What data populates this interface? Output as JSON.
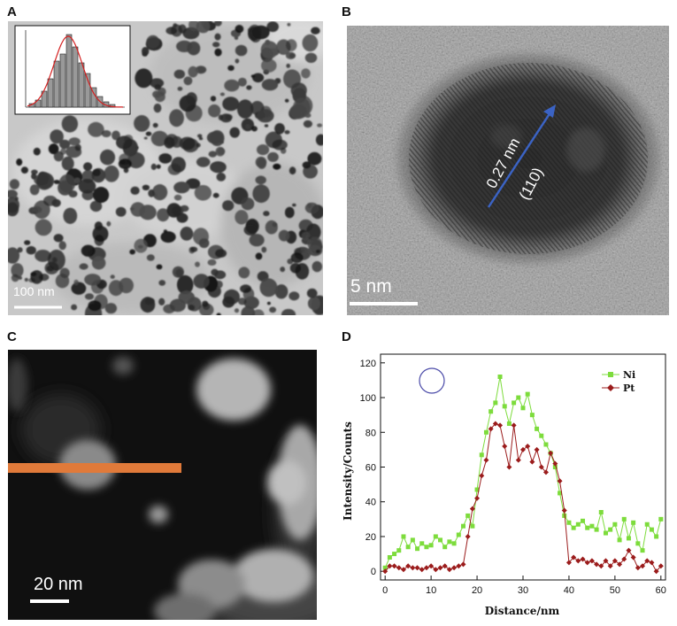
{
  "panels": {
    "a": {
      "letter": "A",
      "scale_label": "100 nm"
    },
    "b": {
      "letter": "B",
      "scale_label": "5 nm",
      "spacing_label": "0.27 nm",
      "plane_label": "(110)"
    },
    "c": {
      "letter": "C",
      "scale_label": "20 nm"
    },
    "d": {
      "letter": "D"
    }
  },
  "colors": {
    "ni": "#7ddc3c",
    "pt": "#9b1c1c",
    "line_scan": "#e07a3a",
    "arrow": "#3b63c4",
    "circle": "#4a4aa8"
  },
  "chart_data": {
    "type": "line",
    "title": "",
    "xlabel": "Distance/nm",
    "ylabel": "Intensity/Counts",
    "xlim": [
      -1,
      61
    ],
    "ylim": [
      -5,
      125
    ],
    "xticks": [
      0,
      10,
      20,
      30,
      40,
      50,
      60
    ],
    "yticks": [
      0,
      20,
      40,
      60,
      80,
      100,
      120
    ],
    "legend_position": "top-right",
    "series": [
      {
        "name": "Ni",
        "x": [
          0,
          1,
          2,
          3,
          4,
          5,
          6,
          7,
          8,
          9,
          10,
          11,
          12,
          13,
          14,
          15,
          16,
          17,
          18,
          19,
          20,
          21,
          22,
          23,
          24,
          25,
          26,
          27,
          28,
          29,
          30,
          31,
          32,
          33,
          34,
          35,
          36,
          37,
          38,
          39,
          40,
          41,
          42,
          43,
          44,
          45,
          46,
          47,
          48,
          49,
          50,
          51,
          52,
          53,
          54,
          55,
          56,
          57,
          58,
          59,
          60
        ],
        "values": [
          2,
          8,
          10,
          12,
          20,
          14,
          18,
          13,
          16,
          14,
          15,
          20,
          18,
          14,
          17,
          16,
          21,
          26,
          32,
          26,
          47,
          67,
          80,
          92,
          97,
          112,
          95,
          85,
          97,
          100,
          94,
          102,
          90,
          82,
          78,
          73,
          68,
          60,
          45,
          32,
          28,
          25,
          27,
          29,
          25,
          26,
          24,
          34,
          22,
          24,
          27,
          18,
          30,
          19,
          28,
          16,
          12,
          27,
          24,
          20,
          30
        ],
        "marker": "square"
      },
      {
        "name": "Pt",
        "x": [
          0,
          1,
          2,
          3,
          4,
          5,
          6,
          7,
          8,
          9,
          10,
          11,
          12,
          13,
          14,
          15,
          16,
          17,
          18,
          19,
          20,
          21,
          22,
          23,
          24,
          25,
          26,
          27,
          28,
          29,
          30,
          31,
          32,
          33,
          34,
          35,
          36,
          37,
          38,
          39,
          40,
          41,
          42,
          43,
          44,
          45,
          46,
          47,
          48,
          49,
          50,
          51,
          52,
          53,
          54,
          55,
          56,
          57,
          58,
          59,
          60
        ],
        "values": [
          0,
          3,
          3,
          2,
          1,
          3,
          2,
          2,
          1,
          2,
          3,
          1,
          2,
          3,
          1,
          2,
          3,
          4,
          20,
          36,
          42,
          55,
          64,
          82,
          85,
          84,
          72,
          60,
          84,
          64,
          70,
          72,
          63,
          70,
          60,
          57,
          68,
          62,
          52,
          35,
          5,
          8,
          6,
          7,
          5,
          6,
          4,
          3,
          6,
          3,
          6,
          4,
          7,
          12,
          8,
          2,
          3,
          6,
          5,
          0,
          3
        ],
        "marker": "diamond"
      }
    ]
  }
}
